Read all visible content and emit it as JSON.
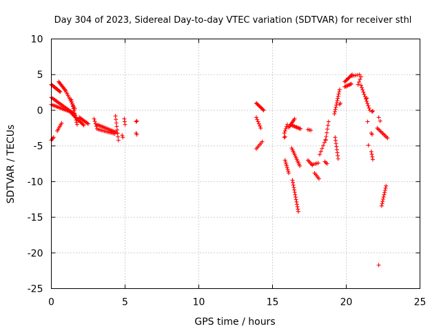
{
  "chart_data": {
    "type": "scatter",
    "title": "Day 304 of 2023, Sidereal Day-to-day VTEC variation (SDTVAR) for receiver sthl",
    "xlabel": "GPS time / hours",
    "ylabel": "SDTVAR / TECUs",
    "xlim": [
      0,
      25
    ],
    "ylim": [
      -25,
      10
    ],
    "xticks": [
      0,
      5,
      10,
      15,
      20,
      25
    ],
    "yticks": [
      -25,
      -20,
      -15,
      -10,
      -5,
      0,
      5,
      10
    ],
    "xtick_labels": [
      "0",
      "5",
      "10",
      "15",
      "20",
      "25"
    ],
    "ytick_labels": [
      "-25",
      "-20",
      "-15",
      "-10",
      "-5",
      "0",
      "5",
      "10"
    ],
    "grid": true,
    "legend": "none",
    "marker": "+",
    "color": "#ff0000",
    "segments": [
      {
        "x0": 0.0,
        "y0": 3.6,
        "x1": 0.6,
        "y1": 2.6,
        "n": 14
      },
      {
        "x0": 0.5,
        "y0": 4.0,
        "x1": 0.95,
        "y1": 2.8,
        "n": 10
      },
      {
        "x0": 0.95,
        "y0": 2.8,
        "x1": 1.6,
        "y1": 0.2,
        "n": 12
      },
      {
        "x0": 0.0,
        "y0": 1.8,
        "x1": 1.6,
        "y1": -0.6,
        "n": 22
      },
      {
        "x0": 0.0,
        "y0": 0.8,
        "x1": 1.4,
        "y1": -0.3,
        "n": 18
      },
      {
        "x0": 1.35,
        "y0": 1.5,
        "x1": 1.75,
        "y1": -2.0,
        "n": 12
      },
      {
        "x0": 1.4,
        "y0": -0.5,
        "x1": 2.2,
        "y1": -2.1,
        "n": 14
      },
      {
        "x0": 1.9,
        "y0": -1.0,
        "x1": 2.5,
        "y1": -1.9,
        "n": 10
      },
      {
        "x0": 0.0,
        "y0": -4.2,
        "x1": 0.15,
        "y1": -3.8,
        "n": 4
      },
      {
        "x0": 0.4,
        "y0": -2.9,
        "x1": 0.7,
        "y1": -1.8,
        "n": 6
      },
      {
        "x0": 2.9,
        "y0": -1.2,
        "x1": 3.1,
        "y1": -2.6,
        "n": 5
      },
      {
        "x0": 3.1,
        "y0": -2.0,
        "x1": 4.4,
        "y1": -3.1,
        "n": 16
      },
      {
        "x0": 3.2,
        "y0": -2.7,
        "x1": 4.3,
        "y1": -3.3,
        "n": 12
      },
      {
        "x0": 4.35,
        "y0": -0.8,
        "x1": 4.55,
        "y1": -4.2,
        "n": 8
      },
      {
        "x0": 4.95,
        "y0": -1.2,
        "x1": 5.0,
        "y1": -2.0,
        "n": 3
      },
      {
        "x0": 4.8,
        "y0": -3.5,
        "x1": 4.85,
        "y1": -3.8,
        "n": 2
      },
      {
        "x0": 5.75,
        "y0": -1.6,
        "x1": 5.8,
        "y1": -1.5,
        "n": 2
      },
      {
        "x0": 5.75,
        "y0": -3.2,
        "x1": 5.8,
        "y1": -3.4,
        "n": 2
      },
      {
        "x0": 13.9,
        "y0": 1.0,
        "x1": 14.4,
        "y1": 0.0,
        "n": 10
      },
      {
        "x0": 13.9,
        "y0": -1.0,
        "x1": 14.2,
        "y1": -2.5,
        "n": 6
      },
      {
        "x0": 13.9,
        "y0": -5.4,
        "x1": 14.3,
        "y1": -4.4,
        "n": 6
      },
      {
        "x0": 15.8,
        "y0": -3.2,
        "x1": 16.0,
        "y1": -2.0,
        "n": 5
      },
      {
        "x0": 16.1,
        "y0": -2.4,
        "x1": 16.5,
        "y1": -1.2,
        "n": 8
      },
      {
        "x0": 16.3,
        "y0": -2.1,
        "x1": 16.9,
        "y1": -2.6,
        "n": 10
      },
      {
        "x0": 15.8,
        "y0": -3.8,
        "x1": 15.85,
        "y1": -3.7,
        "n": 2
      },
      {
        "x0": 15.85,
        "y0": -7.0,
        "x1": 16.1,
        "y1": -8.8,
        "n": 8
      },
      {
        "x0": 16.3,
        "y0": -5.3,
        "x1": 16.85,
        "y1": -7.8,
        "n": 12
      },
      {
        "x0": 16.35,
        "y0": -9.8,
        "x1": 16.75,
        "y1": -14.2,
        "n": 14
      },
      {
        "x0": 17.4,
        "y0": -2.7,
        "x1": 17.6,
        "y1": -2.8,
        "n": 3
      },
      {
        "x0": 17.4,
        "y0": -7.0,
        "x1": 17.7,
        "y1": -7.7,
        "n": 5
      },
      {
        "x0": 17.7,
        "y0": -7.6,
        "x1": 18.1,
        "y1": -7.4,
        "n": 5
      },
      {
        "x0": 17.85,
        "y0": -8.8,
        "x1": 18.15,
        "y1": -9.6,
        "n": 5
      },
      {
        "x0": 18.2,
        "y0": -6.2,
        "x1": 18.6,
        "y1": -4.1,
        "n": 6
      },
      {
        "x0": 18.55,
        "y0": -7.2,
        "x1": 18.7,
        "y1": -7.5,
        "n": 3
      },
      {
        "x0": 18.6,
        "y0": -4.2,
        "x1": 18.8,
        "y1": -1.6,
        "n": 6
      },
      {
        "x0": 19.2,
        "y0": -0.5,
        "x1": 19.55,
        "y1": 2.9,
        "n": 12
      },
      {
        "x0": 19.25,
        "y0": -3.8,
        "x1": 19.45,
        "y1": -6.8,
        "n": 8
      },
      {
        "x0": 19.55,
        "y0": 0.8,
        "x1": 19.6,
        "y1": 1.0,
        "n": 2
      },
      {
        "x0": 19.9,
        "y0": 4.0,
        "x1": 20.4,
        "y1": 5.0,
        "n": 10
      },
      {
        "x0": 19.9,
        "y0": 3.3,
        "x1": 20.35,
        "y1": 3.7,
        "n": 8
      },
      {
        "x0": 20.4,
        "y0": 4.8,
        "x1": 20.9,
        "y1": 5.0,
        "n": 5
      },
      {
        "x0": 20.8,
        "y0": 3.6,
        "x1": 21.0,
        "y1": 4.7,
        "n": 4
      },
      {
        "x0": 21.0,
        "y0": 3.5,
        "x1": 21.6,
        "y1": 0.0,
        "n": 12
      },
      {
        "x0": 21.4,
        "y0": 1.7,
        "x1": 21.5,
        "y1": -4.9,
        "n": 3
      },
      {
        "x0": 21.75,
        "y0": -0.2,
        "x1": 21.8,
        "y1": -0.1,
        "n": 2
      },
      {
        "x0": 21.7,
        "y0": -3.2,
        "x1": 21.75,
        "y1": -3.4,
        "n": 2
      },
      {
        "x0": 21.7,
        "y0": -5.8,
        "x1": 21.8,
        "y1": -6.9,
        "n": 4
      },
      {
        "x0": 22.2,
        "y0": -1.0,
        "x1": 22.3,
        "y1": -1.5,
        "n": 2
      },
      {
        "x0": 22.1,
        "y0": -2.5,
        "x1": 22.8,
        "y1": -3.9,
        "n": 10
      },
      {
        "x0": 22.4,
        "y0": -13.4,
        "x1": 22.7,
        "y1": -10.6,
        "n": 10
      },
      {
        "x0": 22.2,
        "y0": -21.7,
        "x1": 22.2,
        "y1": -21.7,
        "n": 1
      }
    ]
  }
}
